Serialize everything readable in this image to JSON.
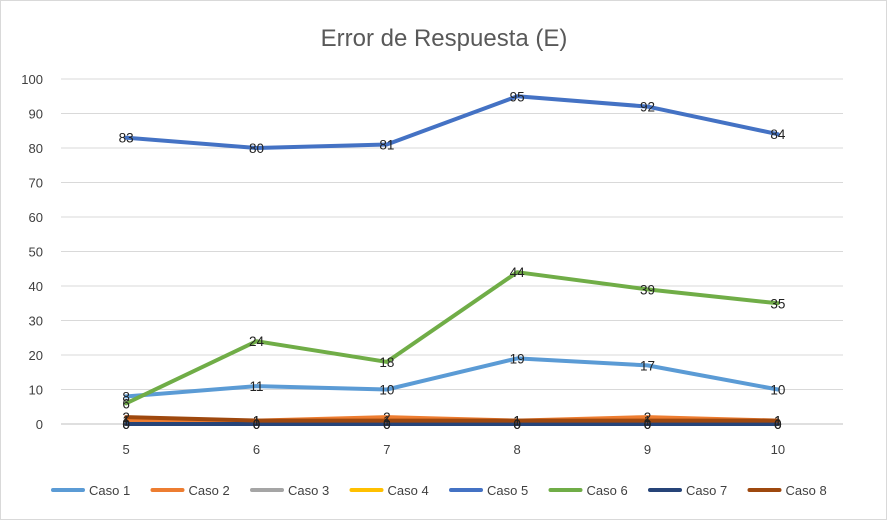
{
  "chart_data": {
    "type": "line",
    "title": "Error de Respuesta (E)",
    "xlabel": "",
    "ylabel": "",
    "x": [
      5,
      6,
      7,
      8,
      9,
      10
    ],
    "ylim": [
      0,
      100
    ],
    "yticks": [
      0,
      10,
      20,
      30,
      40,
      50,
      60,
      70,
      80,
      90,
      100
    ],
    "grid": true,
    "legend": "bottom",
    "series": [
      {
        "name": "Caso 1",
        "color": "#5b9bd5",
        "values": [
          8,
          11,
          10,
          19,
          17,
          10
        ]
      },
      {
        "name": "Caso 2",
        "color": "#ed7d31",
        "values": [
          1,
          1,
          2,
          1,
          2,
          1
        ]
      },
      {
        "name": "Caso 3",
        "color": "#a5a5a5",
        "values": [
          0,
          0,
          0,
          0,
          0,
          0
        ]
      },
      {
        "name": "Caso 4",
        "color": "#ffc000",
        "values": [
          0,
          0,
          0,
          0,
          0,
          0
        ]
      },
      {
        "name": "Caso 5",
        "color": "#4472c4",
        "values": [
          83,
          80,
          81,
          95,
          92,
          84
        ]
      },
      {
        "name": "Caso 6",
        "color": "#70ad47",
        "values": [
          6,
          24,
          18,
          44,
          39,
          35
        ]
      },
      {
        "name": "Caso 7",
        "color": "#264478",
        "values": [
          0,
          0,
          0,
          0,
          0,
          0
        ]
      },
      {
        "name": "Caso 8",
        "color": "#9e480e",
        "values": [
          2,
          1,
          1,
          1,
          1,
          1
        ]
      }
    ]
  }
}
